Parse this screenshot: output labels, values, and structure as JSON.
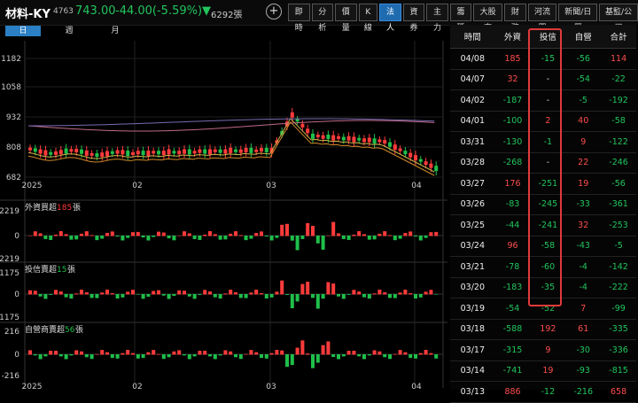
{
  "header": {
    "name": "材料-KY",
    "code": "4763",
    "price": "743.00",
    "change": "-44.00(-5.59%)",
    "change_arrow": "▼",
    "volume": "6292張",
    "add": "+"
  },
  "tabs": [
    "即時",
    "分析",
    "價量",
    "K線",
    "法人",
    "資券",
    "主力",
    "籌碼",
    "大股東",
    "財務",
    "河流圖",
    "新聞/日曆",
    "基監/公司"
  ],
  "active_tab": "法人",
  "periods": [
    "日",
    "週",
    "月"
  ],
  "active_period": "日",
  "price_panel": {
    "y_ticks": [
      "1182",
      "1058",
      "932",
      "808",
      "682"
    ],
    "x_ticks": [
      "2025",
      "02",
      "03",
      "04"
    ]
  },
  "foreign_panel": {
    "title_prefix": "外資買超",
    "title_value": "185",
    "title_unit": "張",
    "y_ticks": [
      "2219",
      "0",
      "-2219"
    ]
  },
  "trust_panel": {
    "title_prefix": "投信賣超",
    "title_value": "15",
    "title_unit": "張",
    "y_ticks": [
      "1175",
      "0",
      "-1175"
    ]
  },
  "dealer_panel": {
    "title_prefix": "自營商賣超",
    "title_value": "56",
    "title_unit": "張",
    "y_ticks": [
      "216",
      "0",
      "-216"
    ]
  },
  "bottom_x_ticks": [
    "2025",
    "02",
    "03",
    "04"
  ],
  "table": {
    "headers": [
      "時間",
      "外資",
      "投信",
      "自營",
      "合計"
    ],
    "rows": [
      [
        "04/08",
        "185",
        "-15",
        "-56",
        "114"
      ],
      [
        "04/07",
        "32",
        "-",
        "-54",
        "-22"
      ],
      [
        "04/02",
        "-187",
        "-",
        "-5",
        "-192"
      ],
      [
        "04/01",
        "-100",
        "2",
        "40",
        "-58"
      ],
      [
        "03/31",
        "-130",
        "-1",
        "9",
        "-122"
      ],
      [
        "03/28",
        "-268",
        "-",
        "22",
        "-246"
      ],
      [
        "03/27",
        "176",
        "-251",
        "19",
        "-56"
      ],
      [
        "03/26",
        "-83",
        "-245",
        "-33",
        "-361"
      ],
      [
        "03/25",
        "-44",
        "-241",
        "32",
        "-253"
      ],
      [
        "03/24",
        "96",
        "-58",
        "-43",
        "-5"
      ],
      [
        "03/21",
        "-78",
        "-60",
        "-4",
        "-142"
      ],
      [
        "03/20",
        "-183",
        "-35",
        "-4",
        "-222"
      ],
      [
        "03/19",
        "-54",
        "-52",
        "7",
        "-99"
      ],
      [
        "03/18",
        "-588",
        "192",
        "61",
        "-335"
      ],
      [
        "03/17",
        "-315",
        "9",
        "-30",
        "-336"
      ],
      [
        "03/14",
        "-741",
        "19",
        "-93",
        "-815"
      ],
      [
        "03/13",
        "886",
        "-12",
        "-216",
        "658"
      ]
    ]
  },
  "colors": {
    "up": "#ff3b3b",
    "down": "#1fbf4a",
    "ma_orange": "#d08a2a",
    "ma_pink": "#c06a8a",
    "ma_purple": "#7a6ab0",
    "ma_yellow": "#c9b34a",
    "highlight": "#e03a3a"
  }
}
